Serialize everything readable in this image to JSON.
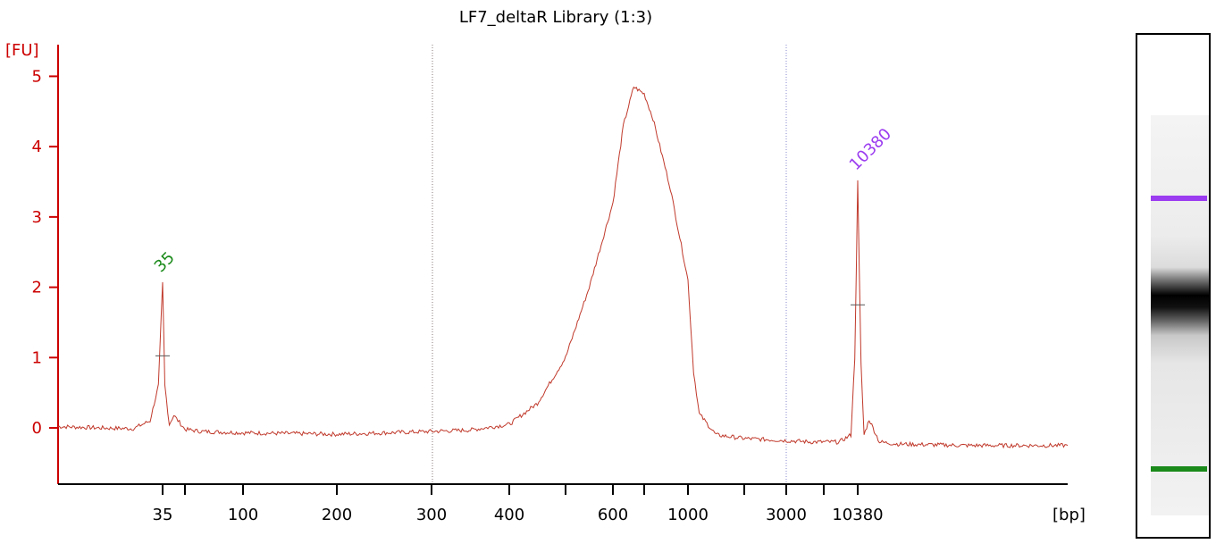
{
  "chart_data": {
    "type": "line",
    "title": "LF7_deltaR Library (1:3)",
    "ylabel": "[FU]",
    "xlabel": "[bp]",
    "ylim": [
      -0.8,
      5.45
    ],
    "y_ticks": [
      0,
      1,
      2,
      3,
      4,
      5
    ],
    "x_tick_labels": [
      "35",
      "100",
      "200",
      "300",
      "400",
      "600",
      "1000",
      "3000",
      "10380"
    ],
    "x_scale": "ladder (non-linear, bp)",
    "grid": false,
    "series": [
      {
        "name": "",
        "color": "#c0392b",
        "points": [
          [
            "10",
            0.02
          ],
          [
            "20",
            0.0
          ],
          [
            "28",
            -0.01
          ],
          [
            "32",
            0.1
          ],
          [
            "34",
            0.6
          ],
          [
            "35",
            2.05
          ],
          [
            "36",
            0.6
          ],
          [
            "38",
            0.05
          ],
          [
            "40",
            0.18
          ],
          [
            "45",
            -0.02
          ],
          [
            "60",
            -0.05
          ],
          [
            "100",
            -0.07
          ],
          [
            "150",
            -0.08
          ],
          [
            "200",
            -0.09
          ],
          [
            "250",
            -0.07
          ],
          [
            "300",
            -0.05
          ],
          [
            "350",
            -0.03
          ],
          [
            "400",
            0.05
          ],
          [
            "450",
            0.35
          ],
          [
            "500",
            1.0
          ],
          [
            "550",
            2.0
          ],
          [
            "600",
            3.2
          ],
          [
            "650",
            4.3
          ],
          [
            "700",
            4.85
          ],
          [
            "750",
            4.75
          ],
          [
            "800",
            4.4
          ],
          [
            "900",
            3.4
          ],
          [
            "1000",
            2.1
          ],
          [
            "1100",
            0.8
          ],
          [
            "1200",
            0.2
          ],
          [
            "1500",
            -0.1
          ],
          [
            "2000",
            -0.15
          ],
          [
            "3000",
            -0.18
          ],
          [
            "5000",
            -0.2
          ],
          [
            "8000",
            -0.2
          ],
          [
            "9500",
            -0.1
          ],
          [
            "10000",
            1.0
          ],
          [
            "10380",
            3.5
          ],
          [
            "10700",
            0.9
          ],
          [
            "11000",
            -0.1
          ],
          [
            "11500",
            0.12
          ],
          [
            "12500",
            -0.2
          ],
          [
            "15000",
            -0.23
          ],
          [
            "25000",
            -0.25
          ],
          [
            "40000",
            -0.25
          ]
        ]
      }
    ],
    "peak_labels": [
      {
        "text": "35",
        "x": "35",
        "y": 2.05,
        "color": "#1a8a1a"
      },
      {
        "text": "10380",
        "x": "10380",
        "y": 3.5,
        "color": "#9b3cf0"
      }
    ],
    "region_markers": [
      "300",
      "3000"
    ]
  },
  "gel_image": {
    "bands": [
      {
        "color": "#9b3cf0",
        "level": 0.32
      },
      {
        "color": "#1a8a1a",
        "level": 0.86
      }
    ]
  }
}
